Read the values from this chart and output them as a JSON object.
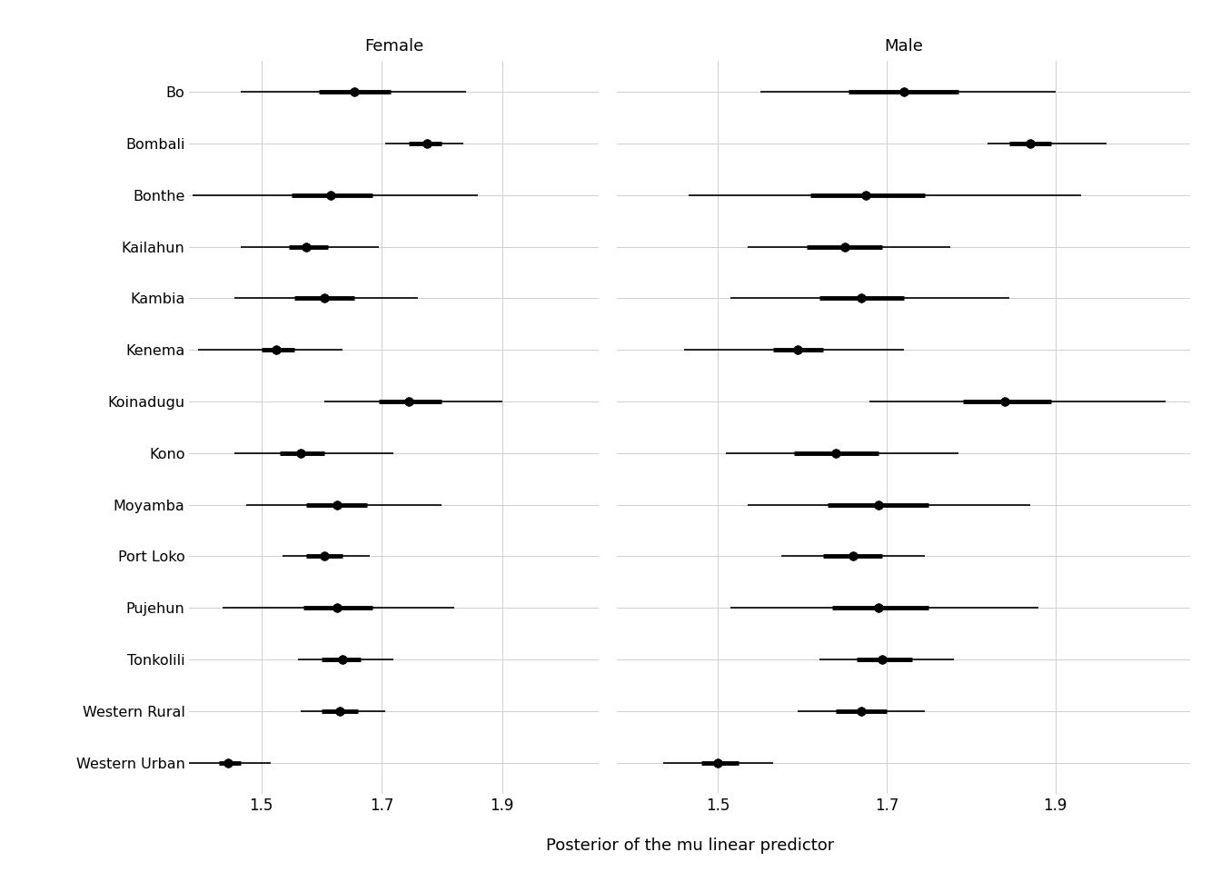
{
  "districts": [
    "Bo",
    "Bombali",
    "Bonthe",
    "Kailahun",
    "Kambia",
    "Kenema",
    "Koinadugu",
    "Kono",
    "Moyamba",
    "Port Loko",
    "Pujehun",
    "Tonkolili",
    "Western Rural",
    "Western Urban"
  ],
  "female": {
    "median": [
      1.655,
      1.775,
      1.615,
      1.575,
      1.605,
      1.525,
      1.745,
      1.565,
      1.625,
      1.605,
      1.625,
      1.635,
      1.63,
      1.445
    ],
    "inner_lo": [
      1.595,
      1.745,
      1.55,
      1.545,
      1.555,
      1.5,
      1.695,
      1.53,
      1.575,
      1.575,
      1.57,
      1.6,
      1.6,
      1.43
    ],
    "inner_hi": [
      1.715,
      1.8,
      1.685,
      1.61,
      1.655,
      1.555,
      1.8,
      1.605,
      1.675,
      1.635,
      1.685,
      1.665,
      1.66,
      1.465
    ],
    "outer_lo": [
      1.465,
      1.705,
      1.385,
      1.465,
      1.455,
      1.395,
      1.605,
      1.455,
      1.475,
      1.535,
      1.435,
      1.56,
      1.565,
      1.375
    ],
    "outer_hi": [
      1.84,
      1.835,
      1.86,
      1.695,
      1.76,
      1.635,
      1.9,
      1.72,
      1.8,
      1.68,
      1.82,
      1.72,
      1.705,
      1.515
    ]
  },
  "male": {
    "median": [
      1.72,
      1.87,
      1.675,
      1.65,
      1.67,
      1.595,
      1.84,
      1.64,
      1.69,
      1.66,
      1.69,
      1.695,
      1.67,
      1.5
    ],
    "inner_lo": [
      1.655,
      1.845,
      1.61,
      1.605,
      1.62,
      1.565,
      1.79,
      1.59,
      1.63,
      1.625,
      1.635,
      1.665,
      1.64,
      1.48
    ],
    "inner_hi": [
      1.785,
      1.895,
      1.745,
      1.695,
      1.72,
      1.625,
      1.895,
      1.69,
      1.75,
      1.695,
      1.75,
      1.73,
      1.7,
      1.525
    ],
    "outer_lo": [
      1.55,
      1.82,
      1.465,
      1.535,
      1.515,
      1.46,
      1.68,
      1.51,
      1.535,
      1.575,
      1.515,
      1.62,
      1.595,
      1.435
    ],
    "outer_hi": [
      1.9,
      1.96,
      1.93,
      1.775,
      1.845,
      1.72,
      2.03,
      1.785,
      1.87,
      1.745,
      1.88,
      1.78,
      1.745,
      1.565
    ]
  },
  "title_female": "Female",
  "title_male": "Male",
  "xlabel": "Posterior of the mu linear predictor",
  "xlim": [
    1.38,
    2.06
  ],
  "xticks": [
    1.5,
    1.7,
    1.9
  ],
  "background_color": "#ffffff",
  "grid_color": "#d0d0d0",
  "point_color": "#000000",
  "line_color": "#000000",
  "thick_lw": 3.5,
  "thin_lw": 1.2,
  "point_size": 7
}
